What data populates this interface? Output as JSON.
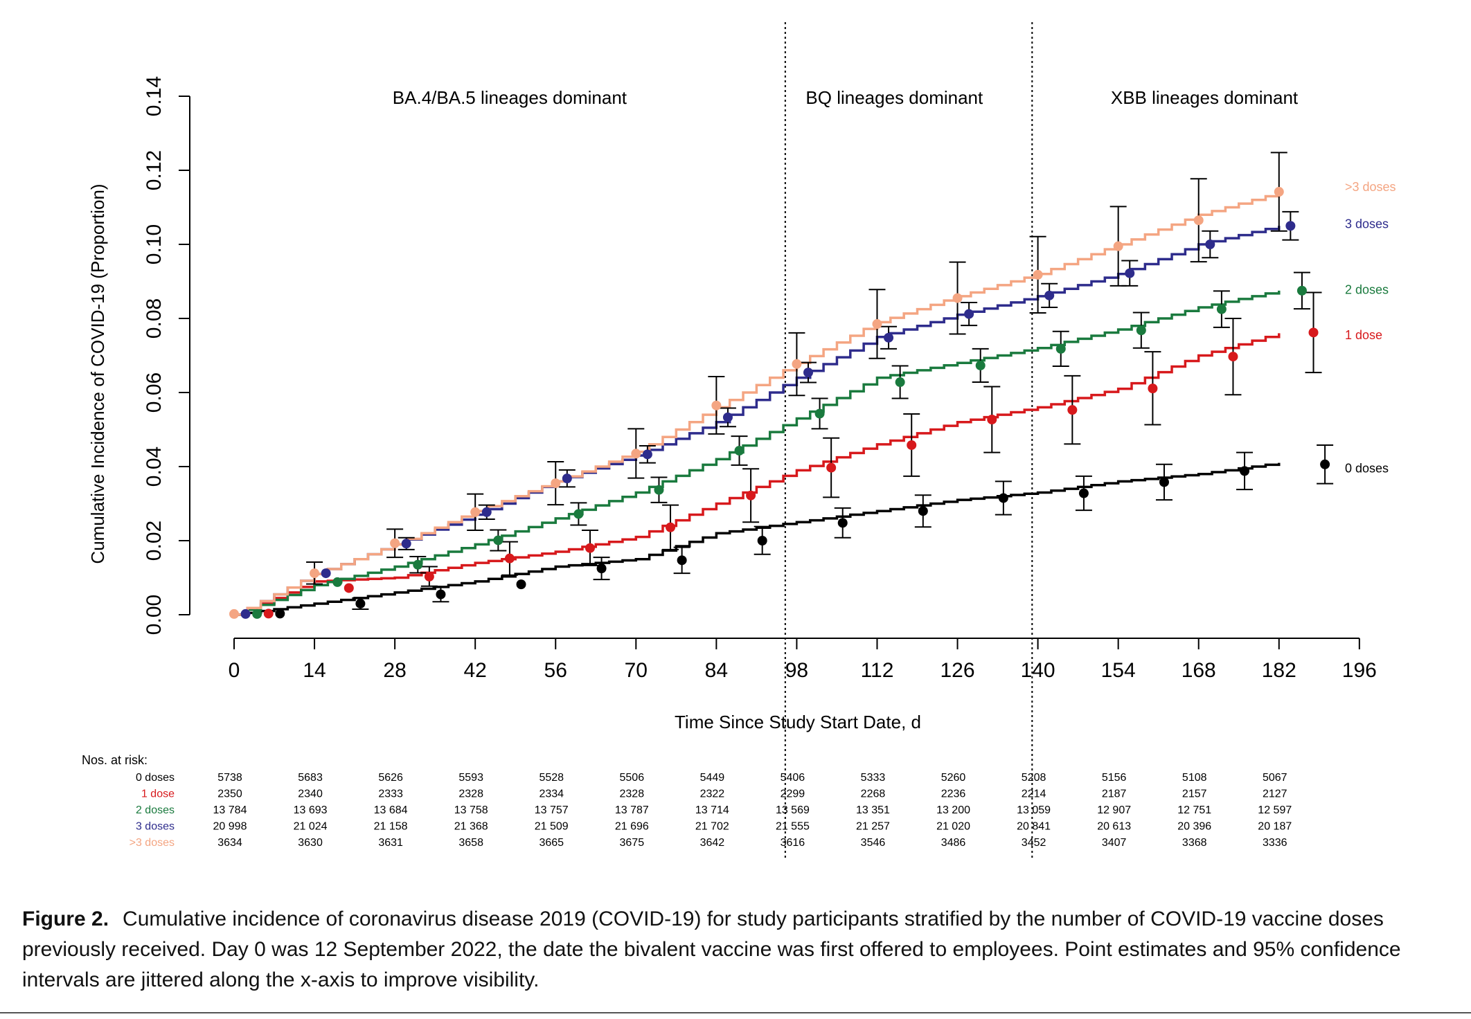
{
  "chart_data": {
    "type": "line",
    "ylabel": "Cumulative Incidence of COVID-19 (Proportion)",
    "xlabel": "Time Since Study Start Date, d",
    "xlim": [
      0,
      196
    ],
    "ylim": [
      0,
      0.14
    ],
    "x_ticks": [
      0,
      14,
      28,
      42,
      56,
      70,
      84,
      98,
      112,
      126,
      140,
      154,
      168,
      182,
      196
    ],
    "x_tick_labels": [
      "0",
      "14",
      "28",
      "42",
      "56",
      "70",
      "84",
      "98",
      "112",
      "126",
      "140",
      "154",
      "168",
      "182",
      "196"
    ],
    "y_ticks": [
      0,
      0.02,
      0.04,
      0.06,
      0.08,
      0.1,
      0.12,
      0.14
    ],
    "y_tick_labels": [
      "0.00",
      "0.02",
      "0.04",
      "0.06",
      "0.08",
      "0.10",
      "0.12",
      "0.14"
    ],
    "grid": false,
    "period_dividers": [
      96,
      139
    ],
    "period_labels": [
      {
        "label": "BA.4/BA.5 lineages dominant",
        "x": 48
      },
      {
        "label": "BQ lineages dominant",
        "x": 115
      },
      {
        "label": "XBB lineages dominant",
        "x": 169
      }
    ],
    "series": [
      {
        "name": "0 doses",
        "color": "#000000",
        "curve": [
          [
            0,
            0
          ],
          [
            14,
            0.003
          ],
          [
            28,
            0.006
          ],
          [
            42,
            0.009
          ],
          [
            56,
            0.013
          ],
          [
            70,
            0.015
          ],
          [
            84,
            0.022
          ],
          [
            98,
            0.025
          ],
          [
            112,
            0.028
          ],
          [
            126,
            0.031
          ],
          [
            140,
            0.033
          ],
          [
            154,
            0.036
          ],
          [
            168,
            0.038
          ],
          [
            182,
            0.041
          ]
        ],
        "points": [
          {
            "x": 8,
            "y": 0.0003,
            "lo": 0.0003,
            "hi": 0.0003
          },
          {
            "x": 22,
            "y": 0.003,
            "lo": 0.0015,
            "hi": 0.0045
          },
          {
            "x": 36,
            "y": 0.0055,
            "lo": 0.0035,
            "hi": 0.0075
          },
          {
            "x": 50,
            "y": 0.0082,
            "lo": 0.0082,
            "hi": 0.0082
          },
          {
            "x": 64,
            "y": 0.0125,
            "lo": 0.0095,
            "hi": 0.0155
          },
          {
            "x": 78,
            "y": 0.0147,
            "lo": 0.0112,
            "hi": 0.0182
          },
          {
            "x": 92,
            "y": 0.02,
            "lo": 0.0163,
            "hi": 0.0238
          },
          {
            "x": 106,
            "y": 0.0248,
            "lo": 0.0208,
            "hi": 0.0288
          },
          {
            "x": 120,
            "y": 0.028,
            "lo": 0.0237,
            "hi": 0.0323
          },
          {
            "x": 134,
            "y": 0.0315,
            "lo": 0.027,
            "hi": 0.036
          },
          {
            "x": 148,
            "y": 0.0328,
            "lo": 0.0282,
            "hi": 0.0374
          },
          {
            "x": 162,
            "y": 0.0358,
            "lo": 0.031,
            "hi": 0.0406
          },
          {
            "x": 176,
            "y": 0.0388,
            "lo": 0.0338,
            "hi": 0.0438
          },
          {
            "x": 190,
            "y": 0.0406,
            "lo": 0.0354,
            "hi": 0.0458
          }
        ]
      },
      {
        "name": "1 dose",
        "color": "#d7191c",
        "curve": [
          [
            0,
            0
          ],
          [
            14,
            0.009
          ],
          [
            28,
            0.01
          ],
          [
            42,
            0.014
          ],
          [
            56,
            0.017
          ],
          [
            70,
            0.021
          ],
          [
            84,
            0.03
          ],
          [
            98,
            0.039
          ],
          [
            112,
            0.046
          ],
          [
            126,
            0.052
          ],
          [
            140,
            0.056
          ],
          [
            154,
            0.061
          ],
          [
            168,
            0.07
          ],
          [
            182,
            0.076
          ]
        ],
        "points": [
          {
            "x": 6,
            "y": 0.0003,
            "lo": 0.0003,
            "hi": 0.0003
          },
          {
            "x": 20,
            "y": 0.0072,
            "lo": 0.0072,
            "hi": 0.0072
          },
          {
            "x": 34,
            "y": 0.0103,
            "lo": 0.0077,
            "hi": 0.013
          },
          {
            "x": 48,
            "y": 0.0152,
            "lo": 0.0107,
            "hi": 0.0197
          },
          {
            "x": 62,
            "y": 0.018,
            "lo": 0.0133,
            "hi": 0.0228
          },
          {
            "x": 76,
            "y": 0.0236,
            "lo": 0.0176,
            "hi": 0.0296
          },
          {
            "x": 90,
            "y": 0.0322,
            "lo": 0.025,
            "hi": 0.0394
          },
          {
            "x": 104,
            "y": 0.0397,
            "lo": 0.0317,
            "hi": 0.0477
          },
          {
            "x": 118,
            "y": 0.0458,
            "lo": 0.0374,
            "hi": 0.0542
          },
          {
            "x": 132,
            "y": 0.0527,
            "lo": 0.0438,
            "hi": 0.0616
          },
          {
            "x": 146,
            "y": 0.0553,
            "lo": 0.0461,
            "hi": 0.0645
          },
          {
            "x": 160,
            "y": 0.0611,
            "lo": 0.0513,
            "hi": 0.071
          },
          {
            "x": 174,
            "y": 0.0697,
            "lo": 0.0594,
            "hi": 0.08
          },
          {
            "x": 188,
            "y": 0.0762,
            "lo": 0.0654,
            "hi": 0.087
          }
        ]
      },
      {
        "name": "2 doses",
        "color": "#1a7a3e",
        "curve": [
          [
            0,
            0
          ],
          [
            14,
            0.008
          ],
          [
            28,
            0.013
          ],
          [
            42,
            0.019
          ],
          [
            56,
            0.026
          ],
          [
            70,
            0.033
          ],
          [
            84,
            0.042
          ],
          [
            98,
            0.053
          ],
          [
            112,
            0.064
          ],
          [
            126,
            0.068
          ],
          [
            140,
            0.072
          ],
          [
            154,
            0.077
          ],
          [
            168,
            0.083
          ],
          [
            182,
            0.0875
          ]
        ],
        "points": [
          {
            "x": 4,
            "y": 0.0002,
            "lo": 0.0002,
            "hi": 0.0002
          },
          {
            "x": 18,
            "y": 0.0088,
            "lo": 0.0088,
            "hi": 0.0088
          },
          {
            "x": 32,
            "y": 0.0135,
            "lo": 0.0113,
            "hi": 0.0157
          },
          {
            "x": 46,
            "y": 0.0201,
            "lo": 0.0173,
            "hi": 0.0229
          },
          {
            "x": 60,
            "y": 0.0272,
            "lo": 0.0242,
            "hi": 0.0302
          },
          {
            "x": 74,
            "y": 0.0337,
            "lo": 0.0303,
            "hi": 0.0371
          },
          {
            "x": 88,
            "y": 0.0443,
            "lo": 0.0404,
            "hi": 0.0482
          },
          {
            "x": 102,
            "y": 0.0543,
            "lo": 0.0502,
            "hi": 0.0584
          },
          {
            "x": 116,
            "y": 0.0628,
            "lo": 0.0584,
            "hi": 0.0672
          },
          {
            "x": 130,
            "y": 0.0673,
            "lo": 0.0628,
            "hi": 0.0718
          },
          {
            "x": 144,
            "y": 0.0718,
            "lo": 0.0671,
            "hi": 0.0765
          },
          {
            "x": 158,
            "y": 0.0768,
            "lo": 0.072,
            "hi": 0.0816
          },
          {
            "x": 172,
            "y": 0.0825,
            "lo": 0.0776,
            "hi": 0.0874
          },
          {
            "x": 186,
            "y": 0.0875,
            "lo": 0.0826,
            "hi": 0.0924
          }
        ]
      },
      {
        "name": "3 doses",
        "color": "#2e2c8c",
        "curve": [
          [
            0,
            0
          ],
          [
            14,
            0.011
          ],
          [
            28,
            0.019
          ],
          [
            42,
            0.027
          ],
          [
            56,
            0.036
          ],
          [
            70,
            0.043
          ],
          [
            84,
            0.052
          ],
          [
            98,
            0.064
          ],
          [
            112,
            0.075
          ],
          [
            126,
            0.081
          ],
          [
            140,
            0.086
          ],
          [
            154,
            0.092
          ],
          [
            168,
            0.1
          ],
          [
            182,
            0.105
          ]
        ],
        "points": [
          {
            "x": 2,
            "y": 0.0002,
            "lo": 0.0002,
            "hi": 0.0002
          },
          {
            "x": 16,
            "y": 0.0112,
            "lo": 0.0112,
            "hi": 0.0112
          },
          {
            "x": 30,
            "y": 0.0192,
            "lo": 0.0176,
            "hi": 0.0208
          },
          {
            "x": 44,
            "y": 0.0277,
            "lo": 0.0258,
            "hi": 0.0296
          },
          {
            "x": 58,
            "y": 0.0368,
            "lo": 0.0345,
            "hi": 0.0391
          },
          {
            "x": 72,
            "y": 0.0433,
            "lo": 0.041,
            "hi": 0.0456
          },
          {
            "x": 86,
            "y": 0.0533,
            "lo": 0.0508,
            "hi": 0.0558
          },
          {
            "x": 100,
            "y": 0.0654,
            "lo": 0.0627,
            "hi": 0.0681
          },
          {
            "x": 114,
            "y": 0.0748,
            "lo": 0.0718,
            "hi": 0.0778
          },
          {
            "x": 128,
            "y": 0.0812,
            "lo": 0.0781,
            "hi": 0.0843
          },
          {
            "x": 142,
            "y": 0.0862,
            "lo": 0.083,
            "hi": 0.0894
          },
          {
            "x": 156,
            "y": 0.0922,
            "lo": 0.0888,
            "hi": 0.0956
          },
          {
            "x": 170,
            "y": 0.1,
            "lo": 0.0964,
            "hi": 0.1036
          },
          {
            "x": 184,
            "y": 0.105,
            "lo": 0.1012,
            "hi": 0.1088
          }
        ]
      },
      {
        "name": ">3 doses",
        "color": "#f4a582",
        "curve": [
          [
            0,
            0
          ],
          [
            14,
            0.011
          ],
          [
            28,
            0.019
          ],
          [
            42,
            0.028
          ],
          [
            56,
            0.036
          ],
          [
            70,
            0.044
          ],
          [
            84,
            0.056
          ],
          [
            98,
            0.068
          ],
          [
            112,
            0.079
          ],
          [
            126,
            0.086
          ],
          [
            140,
            0.092
          ],
          [
            154,
            0.1
          ],
          [
            168,
            0.108
          ],
          [
            182,
            0.114
          ]
        ],
        "points": [
          {
            "x": 0,
            "y": 0.0002,
            "lo": 0.0002,
            "hi": 0.0002
          },
          {
            "x": 14,
            "y": 0.0112,
            "lo": 0.0083,
            "hi": 0.0142
          },
          {
            "x": 28,
            "y": 0.0193,
            "lo": 0.0155,
            "hi": 0.0231
          },
          {
            "x": 42,
            "y": 0.0277,
            "lo": 0.0228,
            "hi": 0.0326
          },
          {
            "x": 56,
            "y": 0.0355,
            "lo": 0.0297,
            "hi": 0.0413
          },
          {
            "x": 70,
            "y": 0.0435,
            "lo": 0.0369,
            "hi": 0.0502
          },
          {
            "x": 84,
            "y": 0.0565,
            "lo": 0.0488,
            "hi": 0.0643
          },
          {
            "x": 98,
            "y": 0.0677,
            "lo": 0.0592,
            "hi": 0.0761
          },
          {
            "x": 112,
            "y": 0.0785,
            "lo": 0.0692,
            "hi": 0.0878
          },
          {
            "x": 126,
            "y": 0.0855,
            "lo": 0.0758,
            "hi": 0.0952
          },
          {
            "x": 140,
            "y": 0.0918,
            "lo": 0.0815,
            "hi": 0.1021
          },
          {
            "x": 154,
            "y": 0.0995,
            "lo": 0.0888,
            "hi": 0.1102
          },
          {
            "x": 168,
            "y": 0.1065,
            "lo": 0.0953,
            "hi": 0.1177
          },
          {
            "x": 182,
            "y": 0.1142,
            "lo": 0.1036,
            "hi": 0.1248
          }
        ]
      }
    ],
    "legend_order": [
      ">3 doses",
      "3 doses",
      "2 doses",
      "1 dose",
      "0 doses"
    ],
    "risk_table": {
      "title": "Nos. at risk:",
      "days": [
        0,
        14,
        28,
        42,
        56,
        70,
        84,
        98,
        112,
        126,
        140,
        154,
        168,
        182
      ],
      "rows": [
        {
          "label": "0 doses",
          "color": "#000000",
          "values": [
            "5738",
            "5683",
            "5626",
            "5593",
            "5528",
            "5506",
            "5449",
            "5406",
            "5333",
            "5260",
            "5208",
            "5156",
            "5108",
            "5067"
          ]
        },
        {
          "label": "1 dose",
          "color": "#d7191c",
          "values": [
            "2350",
            "2340",
            "2333",
            "2328",
            "2334",
            "2328",
            "2322",
            "2299",
            "2268",
            "2236",
            "2214",
            "2187",
            "2157",
            "2127"
          ]
        },
        {
          "label": "2 doses",
          "color": "#1a7a3e",
          "values": [
            "13 784",
            "13 693",
            "13 684",
            "13 758",
            "13 757",
            "13 787",
            "13 714",
            "13 569",
            "13 351",
            "13 200",
            "13 059",
            "12 907",
            "12 751",
            "12 597"
          ]
        },
        {
          "label": "3 doses",
          "color": "#2e2c8c",
          "values": [
            "20 998",
            "21 024",
            "21 158",
            "21 368",
            "21 509",
            "21 696",
            "21 702",
            "21 555",
            "21 257",
            "21 020",
            "20 841",
            "20 613",
            "20 396",
            "20 187"
          ]
        },
        {
          "label": ">3 doses",
          "color": "#f4a582",
          "values": [
            "3634",
            "3630",
            "3631",
            "3658",
            "3665",
            "3675",
            "3642",
            "3616",
            "3546",
            "3486",
            "3452",
            "3407",
            "3368",
            "3336"
          ]
        }
      ]
    }
  },
  "caption": {
    "label": "Figure 2.",
    "text": "Cumulative incidence of coronavirus disease 2019 (COVID-19) for study participants stratified by the number of COVID-19 vaccine doses previously received. Day 0 was 12 September 2022, the date the bivalent vaccine was first offered to employees. Point estimates and 95% confidence intervals are jittered along the x-axis to improve visibility."
  }
}
